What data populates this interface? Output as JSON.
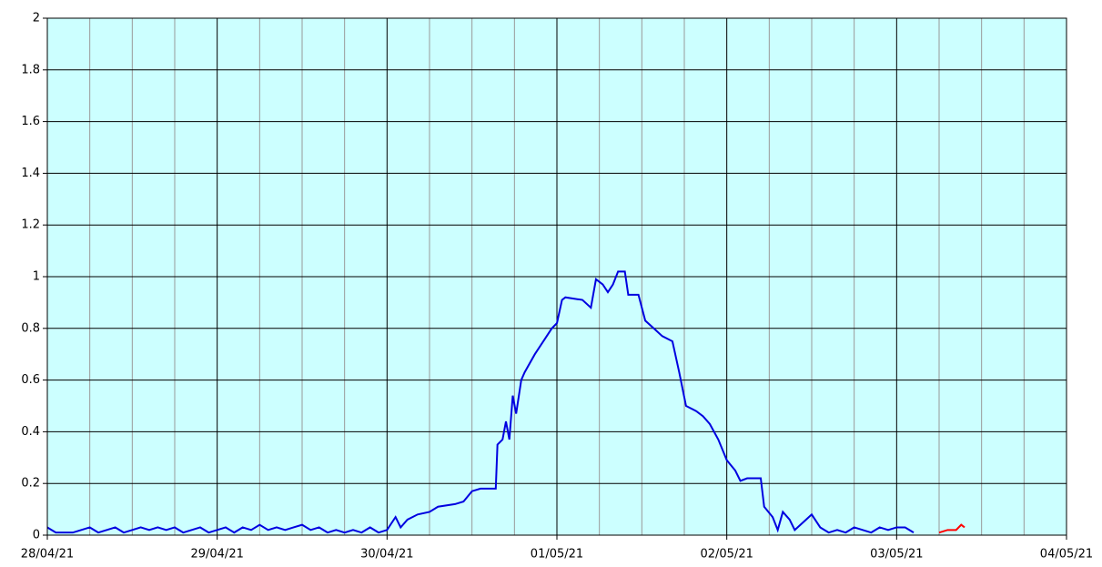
{
  "chart_data": {
    "type": "line",
    "x": [
      0,
      0.05,
      0.1,
      0.15,
      0.2,
      0.25,
      0.3,
      0.35,
      0.4,
      0.45,
      0.5,
      0.55,
      0.6,
      0.65,
      0.7,
      0.75,
      0.8,
      0.85,
      0.9,
      0.95,
      1,
      1.05,
      1.1,
      1.15,
      1.2,
      1.25,
      1.3,
      1.35,
      1.4,
      1.45,
      1.5,
      1.55,
      1.6,
      1.65,
      1.7,
      1.75,
      1.8,
      1.85,
      1.9,
      1.95,
      2,
      2.05,
      2.08,
      2.12,
      2.18,
      2.25,
      2.3,
      2.4,
      2.45,
      2.5,
      2.55,
      2.64,
      2.65,
      2.68,
      2.7,
      2.72,
      2.74,
      2.76,
      2.79,
      2.81,
      2.87,
      2.93,
      2.97,
      3,
      3.03,
      3.05,
      3.15,
      3.2,
      3.23,
      3.27,
      3.3,
      3.33,
      3.36,
      3.4,
      3.42,
      3.48,
      3.52,
      3.57,
      3.62,
      3.68,
      3.72,
      3.76,
      3.82,
      3.86,
      3.9,
      3.95,
      4,
      4.05,
      4.08,
      4.12,
      4.2,
      4.22,
      4.27,
      4.3,
      4.33,
      4.37,
      4.4,
      4.5,
      4.55,
      4.6,
      4.65,
      4.7,
      4.75,
      4.8,
      4.85,
      4.9,
      4.95,
      5,
      5.05,
      5.1,
      5.25,
      5.3,
      5.35,
      5.38,
      5.4
    ],
    "series": [
      {
        "color": "#0000e0",
        "values": [
          0.03,
          0.01,
          0.01,
          0.01,
          0.02,
          0.03,
          0.01,
          0.02,
          0.03,
          0.01,
          0.02,
          0.03,
          0.02,
          0.03,
          0.02,
          0.03,
          0.01,
          0.02,
          0.03,
          0.01,
          0.02,
          0.03,
          0.01,
          0.03,
          0.02,
          0.04,
          0.02,
          0.03,
          0.02,
          0.03,
          0.04,
          0.02,
          0.03,
          0.01,
          0.02,
          0.01,
          0.02,
          0.01,
          0.03,
          0.01,
          0.02,
          0.07,
          0.03,
          0.06,
          0.08,
          0.09,
          0.11,
          0.12,
          0.13,
          0.17,
          0.18,
          0.18,
          0.35,
          0.37,
          0.44,
          0.37,
          0.54,
          0.47,
          0.6,
          0.63,
          0.7,
          0.76,
          0.8,
          0.82,
          0.91,
          0.92,
          0.91,
          0.88,
          0.99,
          0.97,
          0.94,
          0.97,
          1.02,
          1.02,
          0.93,
          0.93,
          0.83,
          0.8,
          0.77,
          0.75,
          0.63,
          0.5,
          0.48,
          0.46,
          0.43,
          0.37,
          0.29,
          0.25,
          0.21,
          0.22,
          0.22,
          0.11,
          0.07,
          0.02,
          0.09,
          0.06,
          0.02,
          0.08,
          0.03,
          0.01,
          0.02,
          0.01,
          0.03,
          0.02,
          0.01,
          0.03,
          0.02,
          0.03,
          0.03,
          0.01,
          null,
          null,
          null,
          null,
          null
        ]
      },
      {
        "color": "#ff0000",
        "values": [
          null,
          null,
          null,
          null,
          null,
          null,
          null,
          null,
          null,
          null,
          null,
          null,
          null,
          null,
          null,
          null,
          null,
          null,
          null,
          null,
          null,
          null,
          null,
          null,
          null,
          null,
          null,
          null,
          null,
          null,
          null,
          null,
          null,
          null,
          null,
          null,
          null,
          null,
          null,
          null,
          null,
          null,
          null,
          null,
          null,
          null,
          null,
          null,
          null,
          null,
          null,
          null,
          null,
          null,
          null,
          null,
          null,
          null,
          null,
          null,
          null,
          null,
          null,
          null,
          null,
          null,
          null,
          null,
          null,
          null,
          null,
          null,
          null,
          null,
          null,
          null,
          null,
          null,
          null,
          null,
          null,
          null,
          null,
          null,
          null,
          null,
          null,
          null,
          null,
          null,
          null,
          null,
          null,
          null,
          null,
          null,
          null,
          null,
          null,
          null,
          null,
          null,
          null,
          null,
          null,
          null,
          null,
          null,
          null,
          null,
          0.01,
          0.02,
          0.02,
          0.04,
          0.03
        ]
      }
    ],
    "xlim": [
      0,
      6
    ],
    "xticks": [
      {
        "value": 0,
        "label": "28/04/21"
      },
      {
        "value": 1,
        "label": "29/04/21"
      },
      {
        "value": 2,
        "label": "30/04/21"
      },
      {
        "value": 3,
        "label": "01/05/21"
      },
      {
        "value": 4,
        "label": "02/05/21"
      },
      {
        "value": 5,
        "label": "03/05/21"
      },
      {
        "value": 6,
        "label": "04/05/21"
      }
    ],
    "ylim": [
      0,
      2
    ],
    "yticks": [
      0,
      0.2,
      0.4,
      0.6,
      0.8,
      1,
      1.2,
      1.4,
      1.6,
      1.8,
      2
    ],
    "grid": true,
    "background": "#ccffff"
  }
}
